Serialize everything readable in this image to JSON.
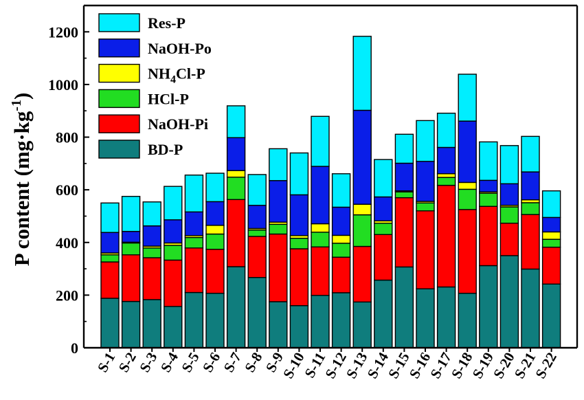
{
  "chart_data": {
    "type": "bar",
    "stacked": true,
    "categories": [
      "S-1",
      "S-2",
      "S-3",
      "S-4",
      "S-5",
      "S-6",
      "S-7",
      "S-8",
      "S-9",
      "S-10",
      "S-11",
      "S-12",
      "S-13",
      "S-14",
      "S-15",
      "S-16",
      "S-17",
      "S-18",
      "S-19",
      "S-20",
      "S-21",
      "S-22"
    ],
    "series": [
      {
        "name": "BD-P",
        "color": "#0f7d7d",
        "values": [
          188,
          176,
          183,
          157,
          210,
          207,
          308,
          267,
          175,
          160,
          199,
          209,
          174,
          257,
          307,
          224,
          231,
          207,
          312,
          350,
          299,
          242
        ]
      },
      {
        "name": "NaOH-Pi",
        "color": "#ff0000",
        "values": [
          138,
          177,
          159,
          176,
          169,
          167,
          255,
          156,
          257,
          216,
          184,
          135,
          211,
          173,
          263,
          296,
          386,
          318,
          225,
          123,
          207,
          140
        ]
      },
      {
        "name": "HCl-P",
        "color": "#22dd22",
        "values": [
          27,
          45,
          37,
          56,
          40,
          58,
          85,
          24,
          37,
          40,
          56,
          53,
          120,
          43,
          22,
          30,
          30,
          77,
          50,
          62,
          45,
          30
        ]
      },
      {
        "name": "NH4Cl-P",
        "color": "#ffff00",
        "values": [
          7,
          3,
          7,
          9,
          7,
          33,
          25,
          6,
          8,
          10,
          32,
          30,
          40,
          9,
          4,
          6,
          14,
          26,
          5,
          6,
          11,
          28
        ]
      },
      {
        "name": "NaOH-Po",
        "color": "#0a1ee8",
        "values": [
          78,
          41,
          77,
          88,
          90,
          90,
          125,
          88,
          158,
          155,
          218,
          107,
          357,
          91,
          105,
          152,
          100,
          233,
          44,
          82,
          106,
          55
        ]
      },
      {
        "name": "Res-P",
        "color": "#00eeff",
        "values": [
          112,
          133,
          91,
          127,
          140,
          108,
          121,
          117,
          121,
          159,
          190,
          127,
          281,
          142,
          110,
          155,
          130,
          178,
          146,
          145,
          135,
          101
        ]
      }
    ],
    "xlabel": "",
    "ylabel": "P content (mg·kg-1)",
    "ylabel_parts": {
      "main": "P content (mg·kg",
      "sup": "-1",
      "close": ")"
    },
    "ylim": [
      0,
      1300
    ],
    "yticks": [
      0,
      200,
      400,
      600,
      800,
      1000,
      1200
    ],
    "grid": false,
    "legend_placement": "top-left",
    "legend_order": [
      "Res-P",
      "NaOH-Po",
      "NH4Cl-P",
      "HCl-P",
      "NaOH-Pi",
      "BD-P"
    ],
    "legend_labels": {
      "Res-P": {
        "main": "Res-P"
      },
      "NaOH-Po": {
        "main": "NaOH-Po"
      },
      "NH4Cl-P": {
        "main": "NH",
        "sub": "4",
        "rest": "Cl-P"
      },
      "HCl-P": {
        "main": "HCl-P"
      },
      "NaOH-Pi": {
        "main": "NaOH-Pi"
      },
      "BD-P": {
        "main": "BD-P"
      }
    }
  }
}
